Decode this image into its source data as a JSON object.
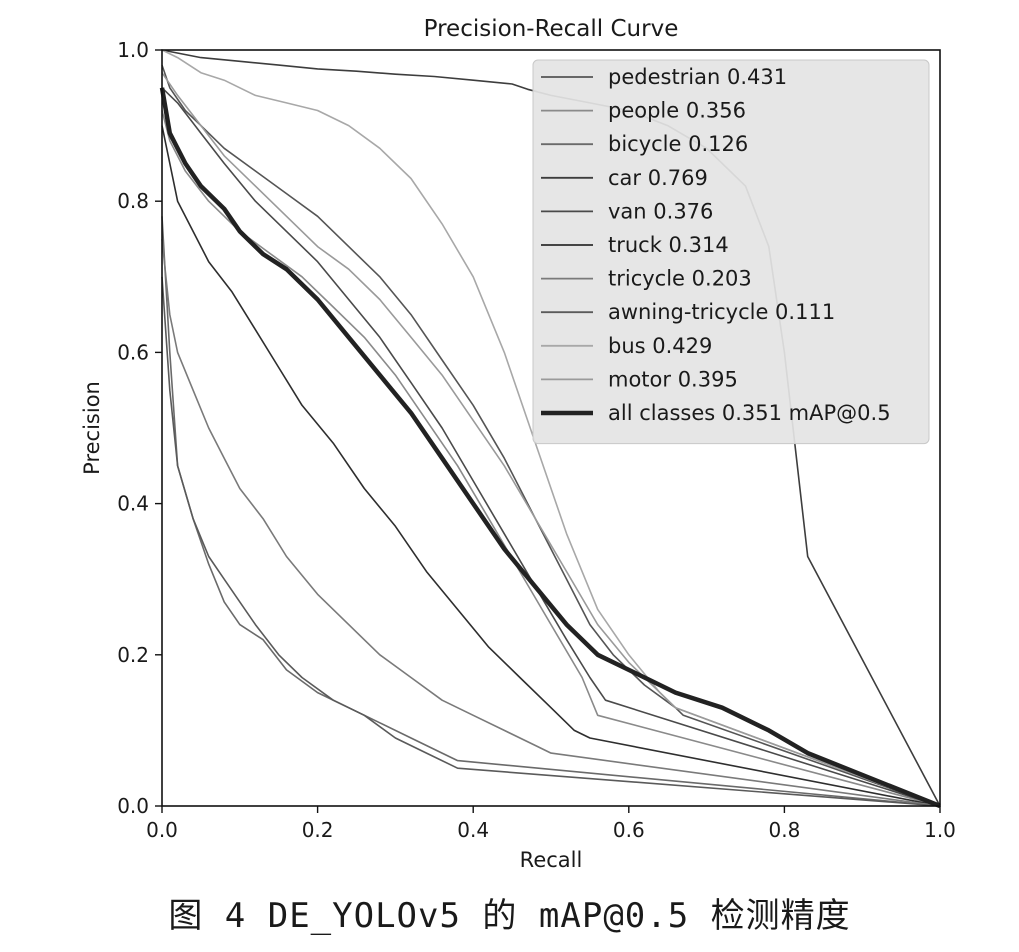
{
  "caption": "图 4   DE_YOLOv5 的 mAP@0.5 检测精度",
  "chart_data": {
    "type": "line",
    "title": "Precision-Recall Curve",
    "xlabel": "Recall",
    "ylabel": "Precision",
    "xlim": [
      0,
      1
    ],
    "ylim": [
      0,
      1
    ],
    "xticks": [
      "0.0",
      "0.2",
      "0.4",
      "0.6",
      "0.8",
      "1.0"
    ],
    "yticks": [
      "0.0",
      "0.2",
      "0.4",
      "0.6",
      "0.8",
      "1.0"
    ],
    "grid": false,
    "legend_position": "top-right",
    "series": [
      {
        "name": "pedestrian 0.431",
        "color": "#555555",
        "x": [
          0,
          0.01,
          0.03,
          0.05,
          0.08,
          0.12,
          0.16,
          0.2,
          0.24,
          0.28,
          0.32,
          0.36,
          0.4,
          0.44,
          0.48,
          0.52,
          0.55,
          0.58,
          0.62,
          0.66,
          0.67,
          1.0
        ],
        "y": [
          0.98,
          0.95,
          0.92,
          0.9,
          0.87,
          0.84,
          0.81,
          0.78,
          0.74,
          0.7,
          0.65,
          0.59,
          0.53,
          0.46,
          0.38,
          0.3,
          0.24,
          0.2,
          0.16,
          0.13,
          0.12,
          0.0
        ]
      },
      {
        "name": "people 0.356",
        "color": "#8a8a8a",
        "x": [
          0,
          0.01,
          0.03,
          0.06,
          0.1,
          0.14,
          0.18,
          0.22,
          0.26,
          0.3,
          0.34,
          0.38,
          0.42,
          0.46,
          0.5,
          0.54,
          0.56,
          1.0
        ],
        "y": [
          0.92,
          0.88,
          0.84,
          0.8,
          0.76,
          0.73,
          0.7,
          0.66,
          0.62,
          0.57,
          0.51,
          0.45,
          0.38,
          0.31,
          0.24,
          0.17,
          0.12,
          0.0
        ]
      },
      {
        "name": "bicycle 0.126",
        "color": "#6a6a6a",
        "x": [
          0,
          0.01,
          0.02,
          0.04,
          0.06,
          0.08,
          0.1,
          0.13,
          0.16,
          0.2,
          0.24,
          0.28,
          0.32,
          0.36,
          0.38,
          1.0
        ],
        "y": [
          0.78,
          0.6,
          0.45,
          0.38,
          0.32,
          0.27,
          0.24,
          0.22,
          0.18,
          0.15,
          0.13,
          0.11,
          0.09,
          0.07,
          0.06,
          0.0
        ]
      },
      {
        "name": "car 0.769",
        "color": "#3d3d3d",
        "x": [
          0,
          0.05,
          0.1,
          0.15,
          0.2,
          0.25,
          0.3,
          0.35,
          0.4,
          0.45,
          0.47,
          0.5,
          0.55,
          0.6,
          0.65,
          0.7,
          0.75,
          0.78,
          0.8,
          0.83,
          1.0
        ],
        "y": [
          1.0,
          0.99,
          0.985,
          0.98,
          0.975,
          0.972,
          0.968,
          0.965,
          0.96,
          0.955,
          0.948,
          0.94,
          0.93,
          0.92,
          0.9,
          0.87,
          0.82,
          0.74,
          0.6,
          0.33,
          0.0
        ]
      },
      {
        "name": "van 0.376",
        "color": "#4a4a4a",
        "x": [
          0,
          0.02,
          0.05,
          0.08,
          0.12,
          0.16,
          0.2,
          0.24,
          0.28,
          0.32,
          0.36,
          0.4,
          0.44,
          0.48,
          0.52,
          0.55,
          0.57,
          1.0
        ],
        "y": [
          0.95,
          0.93,
          0.89,
          0.85,
          0.8,
          0.76,
          0.72,
          0.67,
          0.62,
          0.56,
          0.5,
          0.43,
          0.36,
          0.29,
          0.22,
          0.17,
          0.14,
          0.0
        ]
      },
      {
        "name": "truck 0.314",
        "color": "#2e2e2e",
        "x": [
          0,
          0.01,
          0.02,
          0.04,
          0.06,
          0.09,
          0.12,
          0.15,
          0.18,
          0.22,
          0.26,
          0.3,
          0.34,
          0.38,
          0.42,
          0.46,
          0.5,
          0.53,
          0.55,
          1.0
        ],
        "y": [
          0.9,
          0.85,
          0.8,
          0.76,
          0.72,
          0.68,
          0.63,
          0.58,
          0.53,
          0.48,
          0.42,
          0.37,
          0.31,
          0.26,
          0.21,
          0.17,
          0.13,
          0.1,
          0.09,
          0.0
        ]
      },
      {
        "name": "tricycle 0.203",
        "color": "#7a7a7a",
        "x": [
          0,
          0.01,
          0.02,
          0.04,
          0.06,
          0.08,
          0.1,
          0.13,
          0.16,
          0.2,
          0.24,
          0.28,
          0.32,
          0.36,
          0.4,
          0.44,
          0.48,
          0.5,
          1.0
        ],
        "y": [
          0.75,
          0.65,
          0.6,
          0.55,
          0.5,
          0.46,
          0.42,
          0.38,
          0.33,
          0.28,
          0.24,
          0.2,
          0.17,
          0.14,
          0.12,
          0.1,
          0.08,
          0.07,
          0.0
        ]
      },
      {
        "name": "awning-tricycle 0.111",
        "color": "#5a5a5a",
        "x": [
          0,
          0.01,
          0.02,
          0.04,
          0.06,
          0.08,
          0.1,
          0.12,
          0.15,
          0.18,
          0.22,
          0.26,
          0.3,
          0.34,
          0.38,
          1.0
        ],
        "y": [
          0.7,
          0.55,
          0.45,
          0.38,
          0.33,
          0.3,
          0.27,
          0.24,
          0.2,
          0.17,
          0.14,
          0.12,
          0.09,
          0.07,
          0.05,
          0.0
        ]
      },
      {
        "name": "bus 0.429",
        "color": "#a8a8a8",
        "x": [
          0,
          0.02,
          0.05,
          0.08,
          0.12,
          0.16,
          0.2,
          0.24,
          0.28,
          0.32,
          0.36,
          0.4,
          0.44,
          0.48,
          0.52,
          0.56,
          0.6,
          0.64,
          0.66,
          1.0
        ],
        "y": [
          1.0,
          0.99,
          0.97,
          0.96,
          0.94,
          0.93,
          0.92,
          0.9,
          0.87,
          0.83,
          0.77,
          0.7,
          0.6,
          0.48,
          0.36,
          0.26,
          0.2,
          0.15,
          0.13,
          0.0
        ]
      },
      {
        "name": "motor 0.395",
        "color": "#9a9a9a",
        "x": [
          0,
          0.02,
          0.05,
          0.08,
          0.12,
          0.16,
          0.2,
          0.24,
          0.28,
          0.32,
          0.36,
          0.4,
          0.44,
          0.48,
          0.52,
          0.56,
          0.6,
          0.64,
          0.66,
          1.0
        ],
        "y": [
          0.97,
          0.94,
          0.9,
          0.86,
          0.82,
          0.78,
          0.74,
          0.71,
          0.67,
          0.62,
          0.57,
          0.51,
          0.45,
          0.38,
          0.31,
          0.24,
          0.19,
          0.15,
          0.13,
          0.0
        ]
      },
      {
        "name": "all classes 0.351 mAP@0.5",
        "color": "#222222",
        "bold": true,
        "x": [
          0,
          0.01,
          0.03,
          0.05,
          0.08,
          0.1,
          0.13,
          0.16,
          0.2,
          0.24,
          0.28,
          0.32,
          0.36,
          0.4,
          0.44,
          0.48,
          0.52,
          0.56,
          0.6,
          0.66,
          0.72,
          0.78,
          0.83,
          1.0
        ],
        "y": [
          0.95,
          0.89,
          0.85,
          0.82,
          0.79,
          0.76,
          0.73,
          0.71,
          0.67,
          0.62,
          0.57,
          0.52,
          0.46,
          0.4,
          0.34,
          0.29,
          0.24,
          0.2,
          0.18,
          0.15,
          0.13,
          0.1,
          0.07,
          0.0
        ]
      }
    ]
  }
}
